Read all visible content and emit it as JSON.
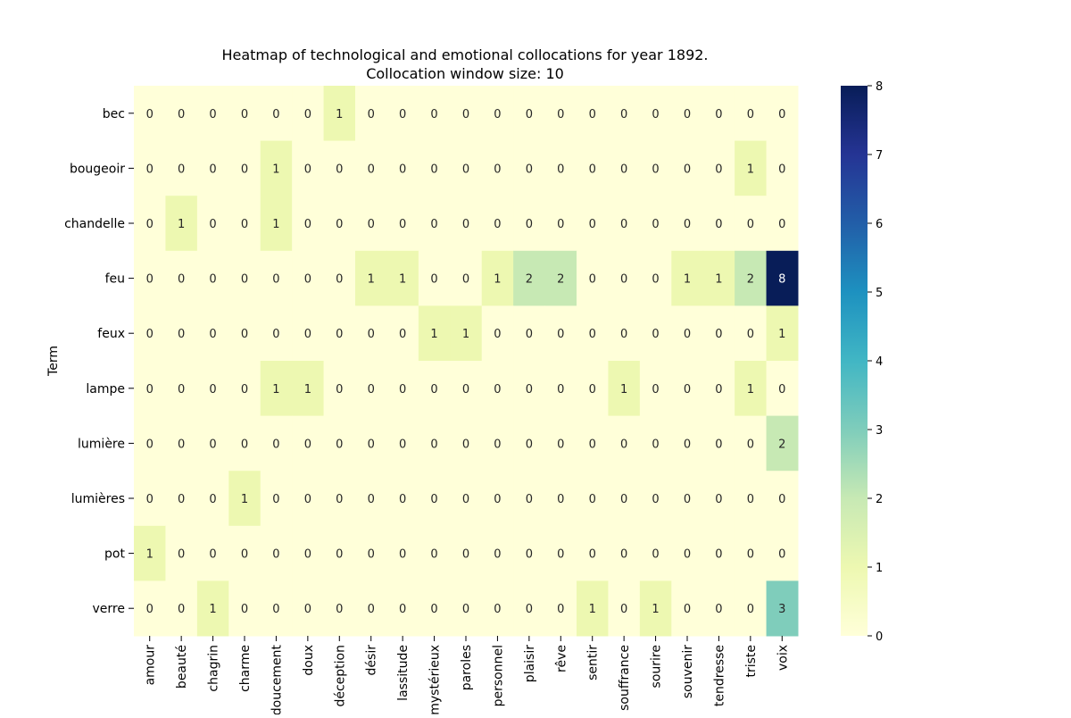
{
  "chart_data": {
    "type": "heatmap",
    "title": [
      "Heatmap of technological and emotional collocations for year 1892.",
      "Collocation window size: 10"
    ],
    "ylabel": "Term",
    "xlabel": "",
    "rows": [
      "bec",
      "bougeoir",
      "chandelle",
      "feu",
      "feux",
      "lampe",
      "lumière",
      "lumières",
      "pot",
      "verre"
    ],
    "columns": [
      "amour",
      "beauté",
      "chagrin",
      "charme",
      "doucement",
      "doux",
      "déception",
      "désir",
      "lassitude",
      "mystérieux",
      "paroles",
      "personnel",
      "plaisir",
      "rêve",
      "sentir",
      "souffrance",
      "sourire",
      "souvenir",
      "tendresse",
      "triste",
      "voix"
    ],
    "values": [
      [
        0,
        0,
        0,
        0,
        0,
        0,
        1,
        0,
        0,
        0,
        0,
        0,
        0,
        0,
        0,
        0,
        0,
        0,
        0,
        0,
        0
      ],
      [
        0,
        0,
        0,
        0,
        1,
        0,
        0,
        0,
        0,
        0,
        0,
        0,
        0,
        0,
        0,
        0,
        0,
        0,
        0,
        1,
        0
      ],
      [
        0,
        1,
        0,
        0,
        1,
        0,
        0,
        0,
        0,
        0,
        0,
        0,
        0,
        0,
        0,
        0,
        0,
        0,
        0,
        0,
        0
      ],
      [
        0,
        0,
        0,
        0,
        0,
        0,
        0,
        1,
        1,
        0,
        0,
        1,
        2,
        2,
        0,
        0,
        0,
        1,
        1,
        2,
        8
      ],
      [
        0,
        0,
        0,
        0,
        0,
        0,
        0,
        0,
        0,
        1,
        1,
        0,
        0,
        0,
        0,
        0,
        0,
        0,
        0,
        0,
        1
      ],
      [
        0,
        0,
        0,
        0,
        1,
        1,
        0,
        0,
        0,
        0,
        0,
        0,
        0,
        0,
        0,
        1,
        0,
        0,
        0,
        1,
        0
      ],
      [
        0,
        0,
        0,
        0,
        0,
        0,
        0,
        0,
        0,
        0,
        0,
        0,
        0,
        0,
        0,
        0,
        0,
        0,
        0,
        0,
        2
      ],
      [
        0,
        0,
        0,
        1,
        0,
        0,
        0,
        0,
        0,
        0,
        0,
        0,
        0,
        0,
        0,
        0,
        0,
        0,
        0,
        0,
        0
      ],
      [
        1,
        0,
        0,
        0,
        0,
        0,
        0,
        0,
        0,
        0,
        0,
        0,
        0,
        0,
        0,
        0,
        0,
        0,
        0,
        0,
        0
      ],
      [
        0,
        0,
        1,
        0,
        0,
        0,
        0,
        0,
        0,
        0,
        0,
        0,
        0,
        0,
        1,
        0,
        1,
        0,
        0,
        0,
        3
      ]
    ],
    "colorbar": {
      "min": 0,
      "max": 8,
      "ticks": [
        0,
        1,
        2,
        3,
        4,
        5,
        6,
        7,
        8
      ],
      "colormap": "YlGnBu"
    },
    "annotations": true,
    "colors": {
      "scale": [
        "#ffffd9",
        "#edf8b1",
        "#c7e9b4",
        "#7fcdbb",
        "#41b6c4",
        "#1d91c0",
        "#225ea8",
        "#253494",
        "#081d58"
      ],
      "annotation_dark": "#262626",
      "annotation_light": "#ffffff"
    }
  }
}
